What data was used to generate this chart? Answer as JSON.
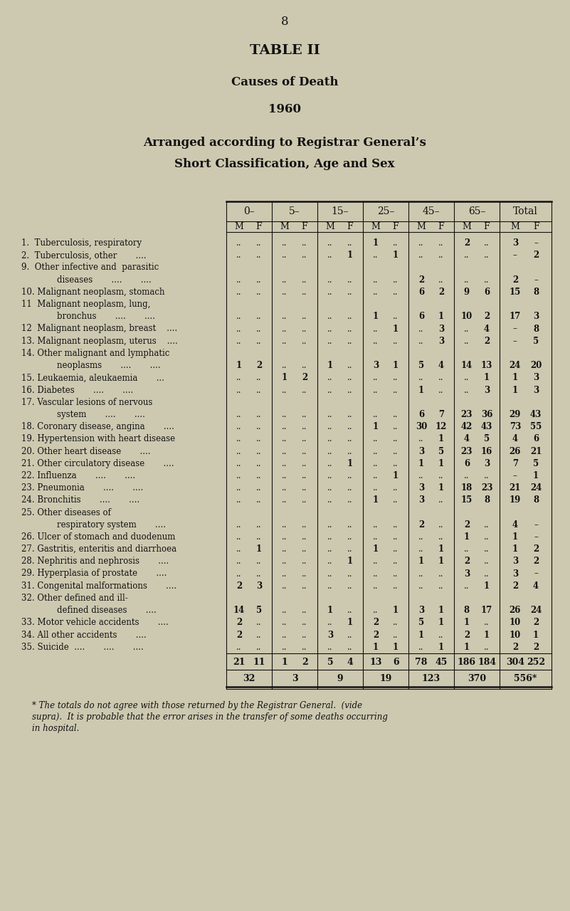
{
  "page_number": "8",
  "title1": "TABLE II",
  "title2": "Causes of Death",
  "title3": "1960",
  "title4": "Arranged according to Registrar General’s",
  "title5": "Short Classification, Age and Sex",
  "bg_color": "#cdc9b0",
  "age_groups": [
    "0–",
    "5–",
    "15–",
    "25–",
    "45–",
    "65–",
    "Total"
  ],
  "rows": [
    {
      "label": "1.  Tuberculosis, respiratory",
      "indent": 0,
      "data": [
        "..",
        "..",
        "..",
        "..",
        "..",
        "..",
        "1",
        "..",
        "..",
        "..",
        "2",
        "..",
        "3",
        "–"
      ]
    },
    {
      "label": "2.  Tuberculosis, other       ....",
      "indent": 0,
      "data": [
        "..",
        "..",
        "..",
        "..",
        "..",
        "1",
        "..",
        "1",
        "..",
        "..",
        "..",
        "..",
        "–",
        "2"
      ]
    },
    {
      "label": "9.  Other infective and  parasitic",
      "indent": 0,
      "data": [
        "",
        "",
        "",
        "",
        "",
        "",
        "",
        "",
        "",
        "",
        "",
        "",
        "",
        ""
      ]
    },
    {
      "label": "        diseases       ....       ....",
      "indent": 1,
      "data": [
        "..",
        "..",
        "..",
        "..",
        "..",
        "..",
        "..",
        "..",
        "2",
        "..",
        "..",
        "..",
        "2",
        "–"
      ]
    },
    {
      "label": "10. Malignant neoplasm, stomach",
      "indent": 0,
      "data": [
        "..",
        "..",
        "..",
        "..",
        "..",
        "..",
        "..",
        "..",
        "6",
        "2",
        "9",
        "6",
        "15",
        "8"
      ]
    },
    {
      "label": "11  Malignant neoplasm, lung,",
      "indent": 0,
      "data": [
        "",
        "",
        "",
        "",
        "",
        "",
        "",
        "",
        "",
        "",
        "",
        "",
        "",
        ""
      ]
    },
    {
      "label": "        bronchus       ....       ....",
      "indent": 1,
      "data": [
        "..",
        "..",
        "..",
        "..",
        "..",
        "..",
        "1",
        "..",
        "6",
        "1",
        "10",
        "2",
        "17",
        "3"
      ]
    },
    {
      "label": "12  Malignant neoplasm, breast    ....",
      "indent": 0,
      "data": [
        "..",
        "..",
        "..",
        "..",
        "..",
        "..",
        "..",
        "1",
        "..",
        "3",
        "..",
        "4",
        "–",
        "8"
      ]
    },
    {
      "label": "13. Malignant neoplasm, uterus    ....",
      "indent": 0,
      "data": [
        "..",
        "..",
        "..",
        "..",
        "..",
        "..",
        "..",
        "..",
        "..",
        "3",
        "..",
        "2",
        "–",
        "5"
      ]
    },
    {
      "label": "14. Other malignant and lymphatic",
      "indent": 0,
      "data": [
        "",
        "",
        "",
        "",
        "",
        "",
        "",
        "",
        "",
        "",
        "",
        "",
        "",
        ""
      ]
    },
    {
      "label": "        neoplasms       ....       ....",
      "indent": 1,
      "data": [
        "1",
        "2",
        "..",
        "..",
        "1",
        "..",
        "3",
        "1",
        "5",
        "4",
        "14",
        "13",
        "24",
        "20"
      ]
    },
    {
      "label": "15. Leukaemia, aleukaemia       ...",
      "indent": 0,
      "data": [
        "..",
        "..",
        "1",
        "2",
        "..",
        "..",
        "..",
        "..",
        "..",
        "..",
        "..",
        "1",
        "1",
        "3"
      ]
    },
    {
      "label": "16. Diabetes       ....       ....",
      "indent": 0,
      "data": [
        "..",
        "..",
        "..",
        "..",
        "..",
        "..",
        "..",
        "..",
        "1",
        "..",
        "..",
        "3",
        "1",
        "3"
      ]
    },
    {
      "label": "17. Vascular lesions of nervous",
      "indent": 0,
      "data": [
        "",
        "",
        "",
        "",
        "",
        "",
        "",
        "",
        "",
        "",
        "",
        "",
        "",
        ""
      ]
    },
    {
      "label": "        system       ....       ....",
      "indent": 1,
      "data": [
        "..",
        "..",
        "..",
        "..",
        "..",
        "..",
        "..",
        "..",
        "6",
        "7",
        "23",
        "36",
        "29",
        "43"
      ]
    },
    {
      "label": "18. Coronary disease, angina       ....",
      "indent": 0,
      "data": [
        "..",
        "..",
        "..",
        "..",
        "..",
        "..",
        "1",
        "..",
        "30",
        "12",
        "42",
        "43",
        "73",
        "55"
      ]
    },
    {
      "label": "19. Hypertension with heart disease",
      "indent": 0,
      "data": [
        "..",
        "..",
        "..",
        "..",
        "..",
        "..",
        "..",
        "..",
        "..",
        "1",
        "4",
        "5",
        "4",
        "6"
      ]
    },
    {
      "label": "20. Other heart disease       ....",
      "indent": 0,
      "data": [
        "..",
        "..",
        "..",
        "..",
        "..",
        "..",
        "..",
        "..",
        "3",
        "5",
        "23",
        "16",
        "26",
        "21"
      ]
    },
    {
      "label": "21. Other circulatory disease       ....",
      "indent": 0,
      "data": [
        "..",
        "..",
        "..",
        "..",
        "..",
        "1",
        "..",
        "..",
        "1",
        "1",
        "6",
        "3",
        "7",
        "5"
      ]
    },
    {
      "label": "22. Influenza       ....       ....",
      "indent": 0,
      "data": [
        "..",
        "..",
        "..",
        "..",
        "..",
        "..",
        "..",
        "1",
        "..",
        "..",
        "..",
        "..",
        "–",
        "1"
      ]
    },
    {
      "label": "23. Pneumonia       ....       ....",
      "indent": 0,
      "data": [
        "..",
        "..",
        "..",
        "..",
        "..",
        "..",
        "..",
        "..",
        "3",
        "1",
        "18",
        "23",
        "21",
        "24"
      ]
    },
    {
      "label": "24. Bronchitis       ....       ....",
      "indent": 0,
      "data": [
        "..",
        "..",
        "..",
        "..",
        "..",
        "..",
        "1",
        "..",
        "3",
        "..",
        "15",
        "8",
        "19",
        "8"
      ]
    },
    {
      "label": "25. Other diseases of",
      "indent": 0,
      "data": [
        "",
        "",
        "",
        "",
        "",
        "",
        "",
        "",
        "",
        "",
        "",
        "",
        "",
        ""
      ]
    },
    {
      "label": "        respiratory system       ....",
      "indent": 1,
      "data": [
        "..",
        "..",
        "..",
        "..",
        "..",
        "..",
        "..",
        "..",
        "2",
        "..",
        "2",
        "..",
        "4",
        "–"
      ]
    },
    {
      "label": "26. Ulcer of stomach and duodenum",
      "indent": 0,
      "data": [
        "..",
        "..",
        "..",
        "..",
        "..",
        "..",
        "..",
        "..",
        "..",
        "..",
        "1",
        "..",
        "1",
        "–"
      ]
    },
    {
      "label": "27. Gastritis, enteritis and diarrhoea",
      "indent": 0,
      "data": [
        "..",
        "1",
        "..",
        "..",
        "..",
        "..",
        "1",
        "..",
        "..",
        "1",
        "..",
        "..",
        "1",
        "2"
      ]
    },
    {
      "label": "28. Nephritis and nephrosis       ....",
      "indent": 0,
      "data": [
        "..",
        "..",
        "..",
        "..",
        "..",
        "1",
        "..",
        "..",
        "1",
        "1",
        "2",
        "..",
        "3",
        "2"
      ]
    },
    {
      "label": "29. Hyperplasia of prostate       ....",
      "indent": 0,
      "data": [
        "..",
        "..",
        "..",
        "..",
        "..",
        "..",
        "..",
        "..",
        "..",
        "..",
        "3",
        "..",
        "3",
        "–"
      ]
    },
    {
      "label": "31. Congenital malformations       ....",
      "indent": 0,
      "data": [
        "2",
        "3",
        "..",
        "..",
        "..",
        "..",
        "..",
        "..",
        "..",
        "..",
        "..",
        "1",
        "2",
        "4"
      ]
    },
    {
      "label": "32. Other defined and ill-",
      "indent": 0,
      "data": [
        "",
        "",
        "",
        "",
        "",
        "",
        "",
        "",
        "",
        "",
        "",
        "",
        "",
        ""
      ]
    },
    {
      "label": "        defined diseases       ....",
      "indent": 1,
      "data": [
        "14",
        "5",
        "..",
        "..",
        "1",
        "..",
        "..",
        "1",
        "3",
        "1",
        "8",
        "17",
        "26",
        "24"
      ]
    },
    {
      "label": "33. Motor vehicle accidents       ....",
      "indent": 0,
      "data": [
        "2",
        "..",
        "..",
        "..",
        "..",
        "1",
        "2",
        "..",
        "5",
        "1",
        "1",
        "..",
        "10",
        "2"
      ]
    },
    {
      "label": "34. All other accidents       ....",
      "indent": 0,
      "data": [
        "2",
        "..",
        "..",
        "..",
        "3",
        "..",
        "2",
        "..",
        "1",
        "..",
        "2",
        "1",
        "10",
        "1"
      ]
    },
    {
      "label": "35. Suicide  ....       ....       ....",
      "indent": 0,
      "data": [
        "..",
        "..",
        "..",
        "..",
        "..",
        "..",
        "1",
        "1",
        "..",
        "1",
        "1",
        "..",
        "2",
        "2"
      ]
    }
  ],
  "totals_mf": [
    "21",
    "11",
    "1",
    "2",
    "5",
    "4",
    "13",
    "6",
    "78",
    "45",
    "186",
    "184",
    "304",
    "252"
  ],
  "totals_combined": [
    "32",
    "3",
    "9",
    "19",
    "123",
    "370",
    "556*"
  ],
  "footnote_line1": "* The totals do not agree with those returned by the Registrar General.  (vide",
  "footnote_line2": "supra).  It is probable that the error arises in the transfer of some deaths occurring",
  "footnote_line3": "in hospital."
}
